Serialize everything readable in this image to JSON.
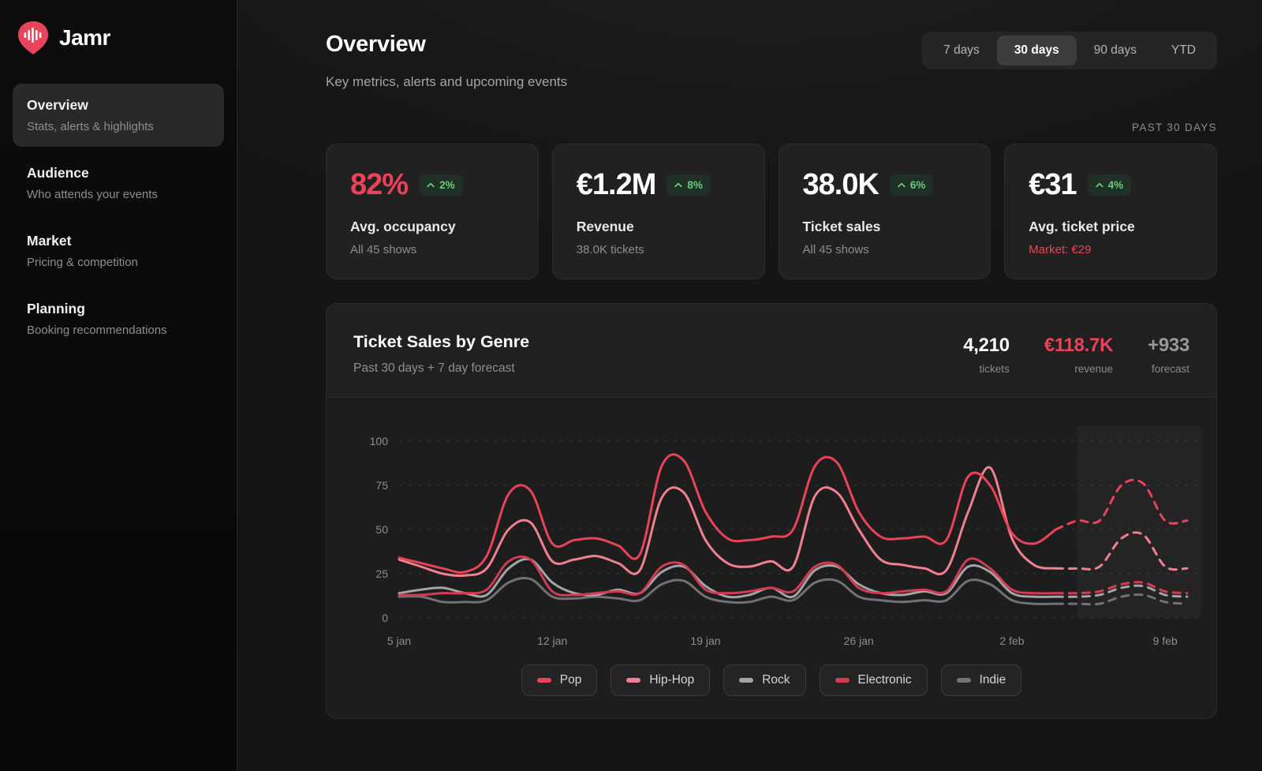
{
  "brand": {
    "name": "Jamr",
    "logo_color": "#e8455c"
  },
  "sidebar": {
    "items": [
      {
        "label": "Overview",
        "sublabel": "Stats, alerts & highlights",
        "active": true
      },
      {
        "label": "Audience",
        "sublabel": "Who attends your events",
        "active": false
      },
      {
        "label": "Market",
        "sublabel": "Pricing & competition",
        "active": false
      },
      {
        "label": "Planning",
        "sublabel": "Booking recommendations",
        "active": false
      }
    ]
  },
  "header": {
    "title": "Overview",
    "subtitle": "Key metrics, alerts and upcoming events"
  },
  "time_ranges": {
    "options": [
      "7 days",
      "30 days",
      "90 days",
      "YTD"
    ],
    "selected": "30 days"
  },
  "period_label": "PAST 30 DAYS",
  "colors": {
    "accent_red": "#ea4258",
    "positive_text": "#6dcb80",
    "positive_bg": "#1f3026",
    "muted_text": "#8d8d8d"
  },
  "metrics": [
    {
      "value": "82%",
      "value_color": "#ea4258",
      "delta": "2%",
      "label": "Avg. occupancy",
      "sub": "All 45 shows",
      "sub_color": "#8d8d8d"
    },
    {
      "value": "€1.2M",
      "value_color": "#ffffff",
      "delta": "8%",
      "label": "Revenue",
      "sub": "38.0K tickets",
      "sub_color": "#8d8d8d"
    },
    {
      "value": "38.0K",
      "value_color": "#ffffff",
      "delta": "6%",
      "label": "Ticket sales",
      "sub": "All 45 shows",
      "sub_color": "#8d8d8d"
    },
    {
      "value": "€31",
      "value_color": "#ffffff",
      "delta": "4%",
      "label": "Avg. ticket price",
      "sub": "Market: €29",
      "sub_color": "#ea4258"
    }
  ],
  "chart_card": {
    "title": "Ticket Sales by Genre",
    "subtitle": "Past 30 days + 7 day forecast",
    "stats": [
      {
        "value": "4,210",
        "label": "tickets",
        "color": "#ffffff"
      },
      {
        "value": "€118.7K",
        "label": "revenue",
        "color": "#ea4258"
      },
      {
        "value": "+933",
        "label": "forecast",
        "color": "#98989d"
      }
    ]
  },
  "chart_data": {
    "type": "line",
    "title": "Ticket Sales by Genre",
    "x_unit": "day",
    "x_start_label": "5 jan",
    "x_tick_labels": [
      "5 jan",
      "12 jan",
      "19 jan",
      "26 jan",
      "2 feb",
      "9 feb"
    ],
    "x_tick_positions": [
      0,
      7,
      14,
      21,
      28,
      35
    ],
    "n_points": 37,
    "ylim": [
      0,
      100
    ],
    "y_ticks": [
      0,
      25,
      50,
      75,
      100
    ],
    "grid": "dashed-horizontal",
    "legend_position": "bottom",
    "forecast_start_index": 30,
    "forecast_band_start_index": 31,
    "series": [
      {
        "name": "Pop",
        "color": "#ea4258",
        "values": [
          34,
          31,
          28,
          26,
          35,
          70,
          72,
          42,
          44,
          45,
          41,
          36,
          86,
          89,
          60,
          45,
          44,
          46,
          50,
          86,
          88,
          60,
          46,
          45,
          46,
          44,
          80,
          75,
          48,
          42,
          50,
          55,
          55,
          75,
          76,
          55,
          55
        ]
      },
      {
        "name": "Hip-Hop",
        "color": "#f0808f",
        "values": [
          33,
          29,
          25,
          24,
          28,
          50,
          54,
          32,
          33,
          35,
          31,
          27,
          68,
          71,
          44,
          31,
          29,
          32,
          29,
          69,
          71,
          50,
          33,
          30,
          28,
          27,
          60,
          85,
          45,
          30,
          28,
          28,
          29,
          45,
          47,
          29,
          28
        ]
      },
      {
        "name": "Rock",
        "color": "#a3a3a8",
        "values": [
          14,
          16,
          17,
          14,
          13,
          28,
          33,
          20,
          14,
          13,
          16,
          14,
          26,
          29,
          18,
          12,
          13,
          17,
          12,
          27,
          29,
          19,
          14,
          13,
          15,
          14,
          29,
          26,
          14,
          12,
          12,
          12,
          13,
          17,
          18,
          13,
          12
        ]
      },
      {
        "name": "Electronic",
        "color": "#d13c52",
        "values": [
          13,
          13,
          14,
          14,
          16,
          32,
          33,
          15,
          13,
          14,
          15,
          14,
          29,
          30,
          16,
          14,
          15,
          17,
          15,
          29,
          30,
          17,
          14,
          15,
          16,
          15,
          33,
          28,
          16,
          14,
          14,
          14,
          15,
          19,
          20,
          15,
          14
        ]
      },
      {
        "name": "Indie",
        "color": "#717176",
        "values": [
          12,
          12,
          9,
          9,
          10,
          20,
          22,
          12,
          11,
          12,
          11,
          10,
          19,
          21,
          12,
          9,
          9,
          12,
          10,
          20,
          21,
          12,
          10,
          9,
          10,
          10,
          21,
          19,
          10,
          8,
          8,
          8,
          8,
          12,
          13,
          9,
          8
        ]
      }
    ]
  }
}
